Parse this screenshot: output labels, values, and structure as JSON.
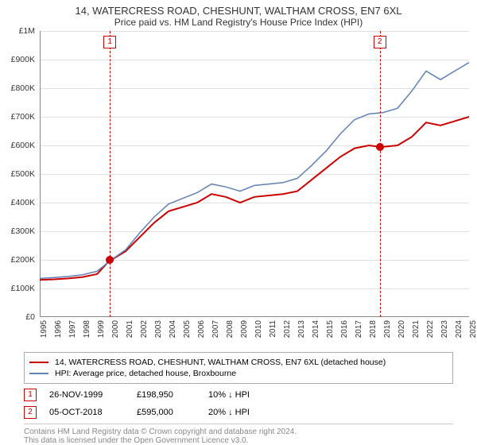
{
  "title_line1": "14, WATERCRESS ROAD, CHESHUNT, WALTHAM CROSS, EN7 6XL",
  "title_line2": "Price paid vs. HM Land Registry's House Price Index (HPI)",
  "chart": {
    "type": "line",
    "background_color": "#ffffff",
    "grid_color": "#e0e0e0",
    "axis_color": "#888888",
    "ylim": [
      0,
      1000000
    ],
    "ytick_step": 100000,
    "ytick_labels": [
      "£0",
      "£100K",
      "£200K",
      "£300K",
      "£400K",
      "£500K",
      "£600K",
      "£700K",
      "£800K",
      "£900K",
      "£1M"
    ],
    "x_start": 1995,
    "x_end": 2025,
    "x_ticks": [
      1995,
      1996,
      1997,
      1998,
      1999,
      2000,
      2001,
      2002,
      2003,
      2004,
      2005,
      2006,
      2007,
      2008,
      2009,
      2010,
      2011,
      2012,
      2013,
      2014,
      2015,
      2016,
      2017,
      2018,
      2019,
      2020,
      2021,
      2022,
      2023,
      2024,
      2025
    ],
    "series": [
      {
        "name": "property",
        "color": "#cc0000",
        "width": 2,
        "points": [
          [
            1995,
            130000
          ],
          [
            1996,
            132000
          ],
          [
            1997,
            135000
          ],
          [
            1998,
            140000
          ],
          [
            1999,
            150000
          ],
          [
            1999.9,
            198950
          ],
          [
            2000,
            200000
          ],
          [
            2001,
            230000
          ],
          [
            2002,
            280000
          ],
          [
            2003,
            330000
          ],
          [
            2004,
            370000
          ],
          [
            2005,
            385000
          ],
          [
            2006,
            400000
          ],
          [
            2007,
            430000
          ],
          [
            2008,
            420000
          ],
          [
            2009,
            400000
          ],
          [
            2010,
            420000
          ],
          [
            2011,
            425000
          ],
          [
            2012,
            430000
          ],
          [
            2013,
            440000
          ],
          [
            2014,
            480000
          ],
          [
            2015,
            520000
          ],
          [
            2016,
            560000
          ],
          [
            2017,
            590000
          ],
          [
            2018,
            600000
          ],
          [
            2018.76,
            595000
          ],
          [
            2019,
            595000
          ],
          [
            2020,
            600000
          ],
          [
            2021,
            630000
          ],
          [
            2022,
            680000
          ],
          [
            2023,
            670000
          ],
          [
            2024,
            685000
          ],
          [
            2025,
            700000
          ]
        ]
      },
      {
        "name": "hpi",
        "color": "#6082b6",
        "width": 1.5,
        "points": [
          [
            1995,
            135000
          ],
          [
            1996,
            138000
          ],
          [
            1997,
            142000
          ],
          [
            1998,
            148000
          ],
          [
            1999,
            160000
          ],
          [
            2000,
            200000
          ],
          [
            2001,
            235000
          ],
          [
            2002,
            295000
          ],
          [
            2003,
            350000
          ],
          [
            2004,
            395000
          ],
          [
            2005,
            415000
          ],
          [
            2006,
            435000
          ],
          [
            2007,
            465000
          ],
          [
            2008,
            455000
          ],
          [
            2009,
            440000
          ],
          [
            2010,
            460000
          ],
          [
            2011,
            465000
          ],
          [
            2012,
            470000
          ],
          [
            2013,
            485000
          ],
          [
            2014,
            530000
          ],
          [
            2015,
            580000
          ],
          [
            2016,
            640000
          ],
          [
            2017,
            690000
          ],
          [
            2018,
            710000
          ],
          [
            2019,
            715000
          ],
          [
            2020,
            730000
          ],
          [
            2021,
            790000
          ],
          [
            2022,
            860000
          ],
          [
            2023,
            830000
          ],
          [
            2024,
            860000
          ],
          [
            2025,
            890000
          ]
        ]
      }
    ],
    "event_markers": [
      {
        "id": "1",
        "x": 1999.9,
        "y": 198950,
        "color": "#cc0000"
      },
      {
        "id": "2",
        "x": 2018.76,
        "y": 595000,
        "color": "#cc0000"
      }
    ]
  },
  "legend": {
    "border_color": "#aaaaaa",
    "items": [
      {
        "color": "#cc0000",
        "label": "14, WATERCRESS ROAD, CHESHUNT, WALTHAM CROSS, EN7 6XL (detached house)"
      },
      {
        "color": "#6082b6",
        "label": "HPI: Average price, detached house, Broxbourne"
      }
    ]
  },
  "events": [
    {
      "id": "1",
      "color": "#cc0000",
      "date": "26-NOV-1999",
      "price": "£198,950",
      "diff": "10% ↓ HPI"
    },
    {
      "id": "2",
      "color": "#cc0000",
      "date": "05-OCT-2018",
      "price": "£595,000",
      "diff": "20% ↓ HPI"
    }
  ],
  "footer_line1": "Contains HM Land Registry data © Crown copyright and database right 2024.",
  "footer_line2": "This data is licensed under the Open Government Licence v3.0."
}
